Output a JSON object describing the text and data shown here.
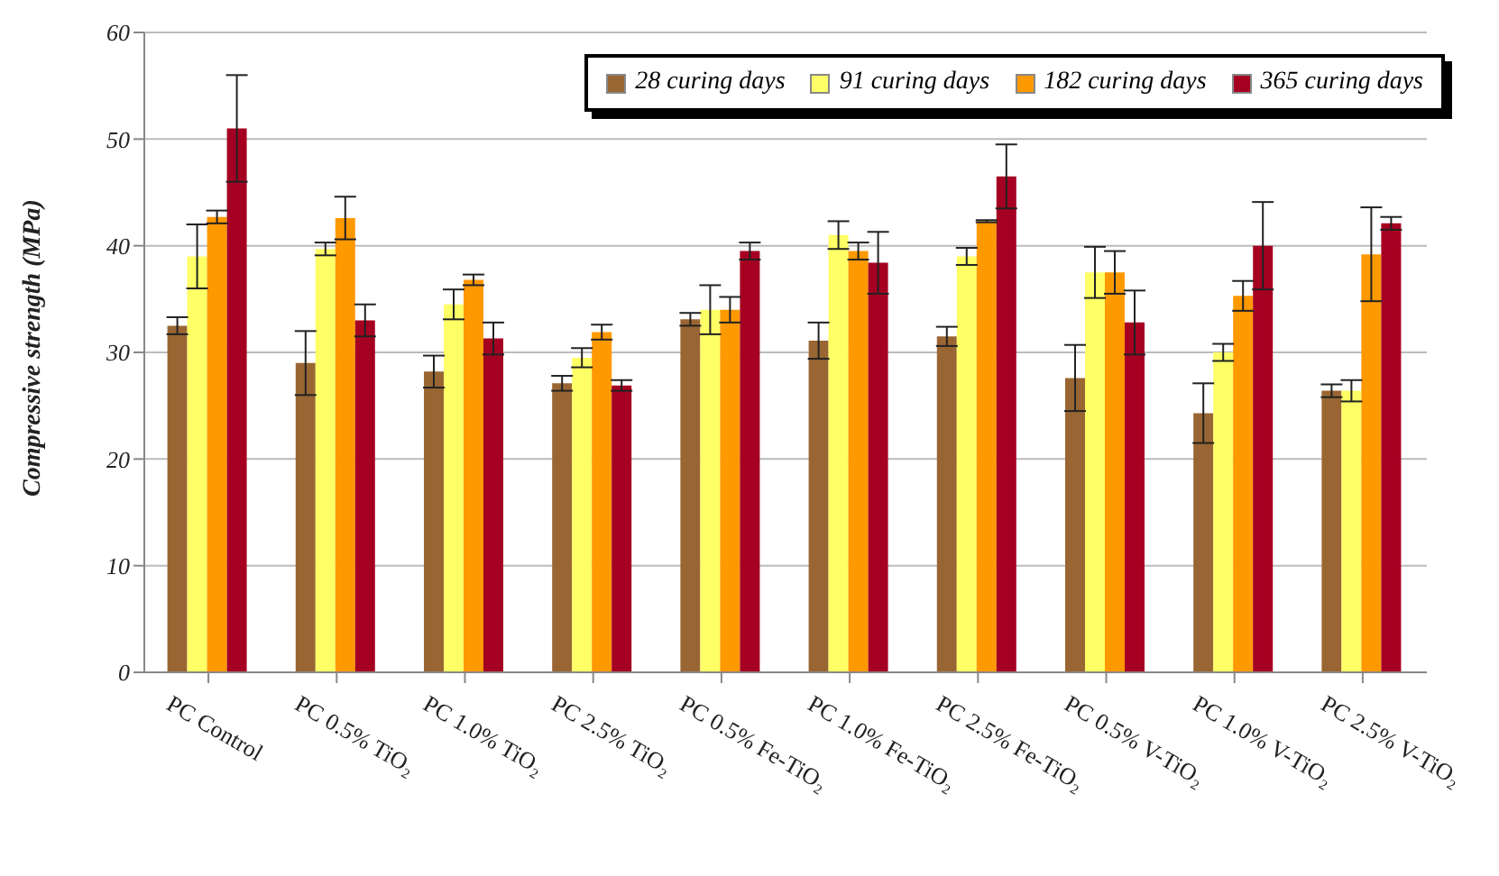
{
  "chart_data": {
    "type": "bar",
    "ylabel": "Compressive strength  (MPa)",
    "categories": [
      "PC Control",
      "PC 0.5% TiO₂",
      "PC 1.0% TiO₂",
      "PC 2.5% TiO₂",
      "PC 0.5% Fe-TiO₂",
      "PC 1.0% Fe-TiO₂",
      "PC 2.5% Fe-TiO₂",
      "PC 0.5% V-TiO₂",
      "PC 1.0% V-TiO₂",
      "PC 2.5% V-TiO₂"
    ],
    "series": [
      {
        "name": "28 curing days",
        "color": "#996633",
        "values": [
          32.5,
          29,
          28.2,
          27.1,
          33.1,
          31.1,
          31.5,
          27.6,
          24.3,
          26.4
        ],
        "errors": [
          0.8,
          3,
          1.5,
          0.7,
          0.6,
          1.7,
          0.9,
          3.1,
          2.8,
          0.6
        ]
      },
      {
        "name": "91 curing days",
        "color": "#ffff66",
        "values": [
          39,
          39.7,
          34.5,
          29.5,
          34,
          41,
          39,
          37.5,
          30,
          26.4
        ],
        "errors": [
          3,
          0.6,
          1.4,
          0.9,
          2.3,
          1.3,
          0.8,
          2.4,
          0.8,
          1
        ]
      },
      {
        "name": "182 curing days",
        "color": "#ff9900",
        "values": [
          42.7,
          42.6,
          36.8,
          31.9,
          34,
          39.5,
          42.3,
          37.5,
          35.3,
          39.2
        ],
        "errors": [
          0.6,
          2,
          0.5,
          0.7,
          1.2,
          0.8,
          0.1,
          2,
          1.4,
          4.4
        ]
      },
      {
        "name": "365 curing days",
        "color": "#a50021",
        "values": [
          51,
          33,
          31.3,
          26.9,
          39.5,
          38.4,
          46.5,
          32.8,
          40,
          42.1
        ],
        "errors": [
          5,
          1.5,
          1.5,
          0.5,
          0.8,
          2.9,
          3,
          3,
          4.1,
          0.6
        ]
      }
    ],
    "ylim": [
      0,
      60
    ],
    "yticks": [
      0,
      10,
      20,
      30,
      40,
      50,
      60
    ],
    "grid": "y",
    "legend": "top right"
  }
}
